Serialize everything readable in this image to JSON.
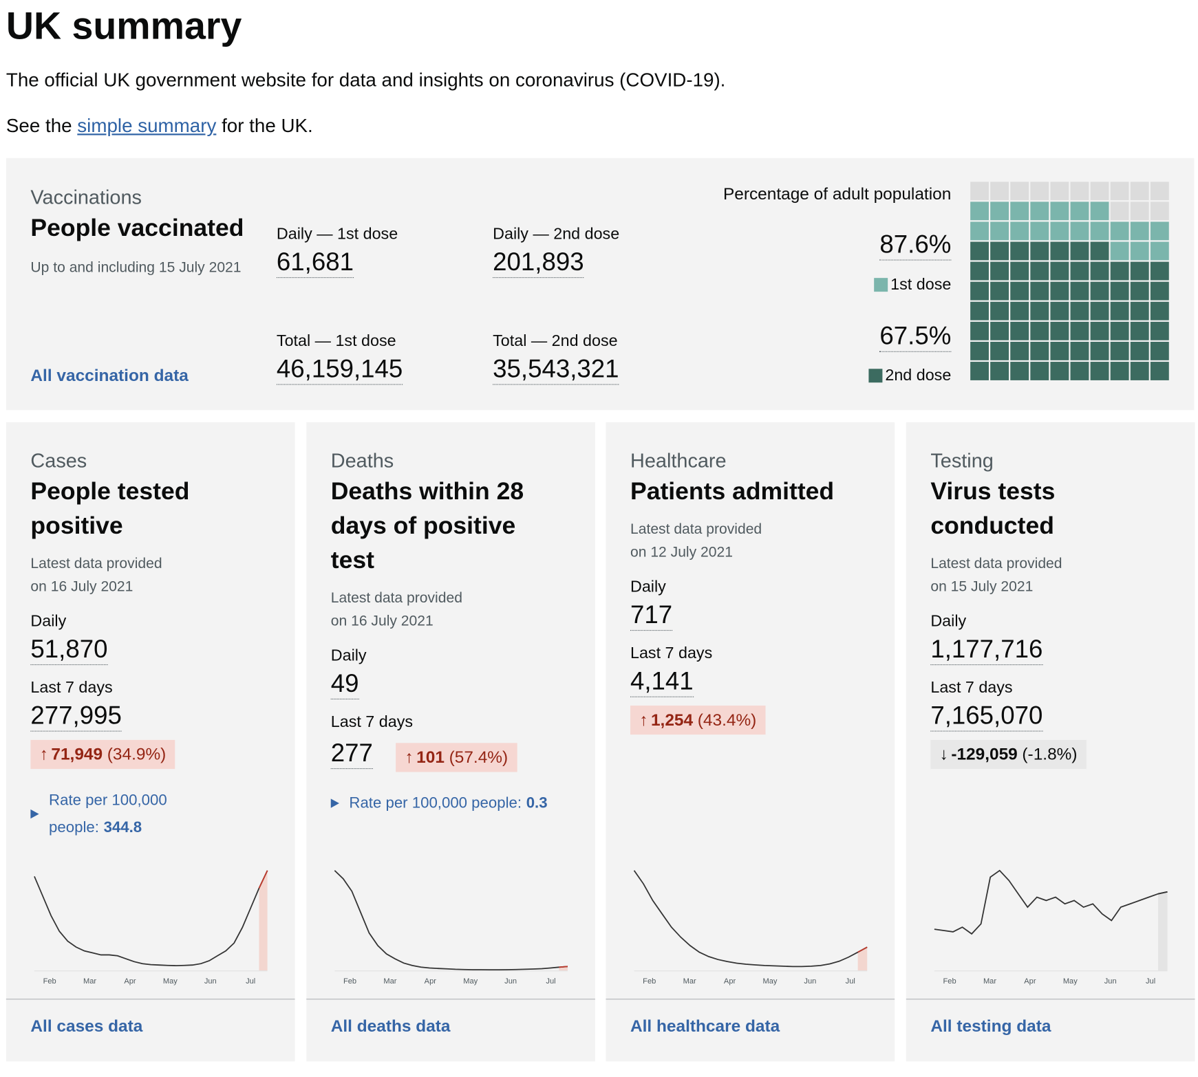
{
  "header": {
    "title": "UK summary",
    "description": "The official UK government website for data and insights on coronavirus (COVID-19).",
    "summary_prefix": "See the",
    "summary_link": "simple summary",
    "summary_suffix": "for the UK."
  },
  "vaccinations": {
    "category": "Vaccinations",
    "title": "People vaccinated",
    "date": "Up to and including 15 July 2021",
    "metrics": [
      {
        "label": "Daily — 1st dose",
        "value": "61,681"
      },
      {
        "label": "Daily — 2nd dose",
        "value": "201,893"
      },
      {
        "label": "Total — 1st dose",
        "value": "46,159,145"
      },
      {
        "label": "Total — 2nd dose",
        "value": "35,543,321"
      }
    ],
    "link": "All vaccination data",
    "waffle": {
      "title": "Percentage of adult population",
      "first_dose": {
        "value": 87.6,
        "label": "87.6%",
        "name": "1st dose",
        "color": "#7bb5ac"
      },
      "second_dose": {
        "value": 67.5,
        "label": "67.5%",
        "name": "2nd dose",
        "color": "#3c6b60"
      },
      "empty_color": "#dcdcdc"
    }
  },
  "cards": [
    {
      "category": "Cases",
      "title": "People tested positive",
      "date": "Latest data provided on 16 July 2021",
      "metrics": [
        {
          "label": "Daily",
          "value": "51,870"
        },
        {
          "label": "Last 7 days",
          "value": "277,995"
        }
      ],
      "change": {
        "arrow": "↑",
        "value": "71,949",
        "percent": "(34.9%)",
        "color": "#942514",
        "background": "#f6d7d2"
      },
      "rate": {
        "label": "Rate per 100,000 people:",
        "value": "344.8"
      },
      "sparkline": {
        "months": [
          "Feb",
          "Mar",
          "Apr",
          "May",
          "Jun",
          "Jul"
        ],
        "values": [
          48000,
          38000,
          28000,
          20000,
          15000,
          12000,
          10000,
          9000,
          8000,
          8000,
          7500,
          6000,
          4500,
          3500,
          3000,
          2800,
          2600,
          2500,
          2600,
          2800,
          3500,
          5000,
          7500,
          10000,
          14000,
          22000,
          32000,
          42000,
          51000
        ],
        "line_color": "#333333",
        "highlight_color": "#f3d6cf",
        "highlight_line": "#c0392b"
      },
      "link": "All cases data"
    },
    {
      "category": "Deaths",
      "title": "Deaths within 28 days of positive test",
      "date": "Latest data provided on 16 July 2021",
      "metrics": [
        {
          "label": "Daily",
          "value": "49"
        },
        {
          "label": "Last 7 days",
          "value": "277",
          "change": {
            "arrow": "↑",
            "value": "101",
            "percent": "(57.4%)",
            "color": "#942514",
            "background": "#f6d7d2"
          }
        }
      ],
      "rate": {
        "label": "Rate per 100,000 people:",
        "value": "0.3"
      },
      "sparkline": {
        "months": [
          "Feb",
          "Mar",
          "Apr",
          "May",
          "Jun",
          "Jul"
        ],
        "values": [
          1200,
          1100,
          950,
          700,
          450,
          300,
          200,
          140,
          90,
          60,
          40,
          30,
          25,
          20,
          15,
          12,
          10,
          10,
          9,
          9,
          10,
          12,
          15,
          18,
          22,
          30,
          40,
          49
        ],
        "line_color": "#333333",
        "highlight_color": "#f3d6cf",
        "highlight_line": "#c0392b"
      },
      "link": "All deaths data"
    },
    {
      "category": "Healthcare",
      "title": "Patients admitted",
      "date": "Latest data provided on 12 July 2021",
      "metrics": [
        {
          "label": "Daily",
          "value": "717"
        },
        {
          "label": "Last 7 days",
          "value": "4,141"
        }
      ],
      "change": {
        "arrow": "↑",
        "value": "1,254",
        "percent": "(43.4%)",
        "color": "#942514",
        "background": "#f6d7d2"
      },
      "sparkline": {
        "months": [
          "Feb",
          "Mar",
          "Apr",
          "May",
          "Jun",
          "Jul"
        ],
        "values": [
          3000,
          2600,
          2100,
          1700,
          1300,
          1000,
          750,
          550,
          420,
          330,
          270,
          220,
          190,
          170,
          150,
          140,
          130,
          120,
          120,
          130,
          150,
          200,
          280,
          400,
          550,
          700
        ],
        "line_color": "#333333",
        "highlight_color": "#f3d6cf",
        "highlight_line": "#c0392b"
      },
      "link": "All healthcare data"
    },
    {
      "category": "Testing",
      "title": "Virus tests conducted",
      "date": "Latest data provided on 15 July 2021",
      "metrics": [
        {
          "label": "Daily",
          "value": "1,177,716"
        },
        {
          "label": "Last 7 days",
          "value": "7,165,070"
        }
      ],
      "change": {
        "arrow": "↓",
        "value": "-129,059",
        "percent": "(-1.8%)",
        "color": "#0b0c0c",
        "background": "#e8e8e8"
      },
      "sparkline": {
        "months": [
          "Feb",
          "Mar",
          "Apr",
          "May",
          "Jun",
          "Jul"
        ],
        "values": [
          0.62,
          0.6,
          0.58,
          0.65,
          0.55,
          0.7,
          1.4,
          1.5,
          1.35,
          1.15,
          0.95,
          1.1,
          1.05,
          1.1,
          1.0,
          1.05,
          0.95,
          1.0,
          0.85,
          0.75,
          0.95,
          1.0,
          1.05,
          1.1,
          1.15,
          1.18
        ],
        "line_color": "#333333",
        "highlight_color": "#e4e4e4",
        "highlight_line": "#333333"
      },
      "link": "All testing data"
    }
  ]
}
